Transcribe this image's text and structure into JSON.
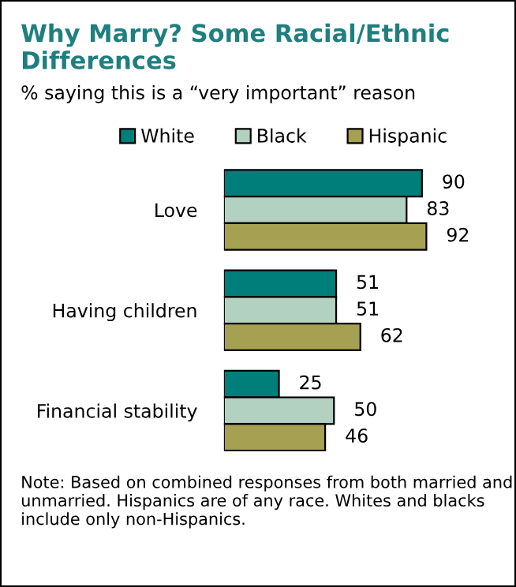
{
  "chart_data": {
    "type": "bar",
    "orientation": "horizontal",
    "title": "Why Marry? Some Racial/Ethnic Differences",
    "subtitle": "% saying this is a “very important” reason",
    "categories": [
      "Love",
      "Having children",
      "Financial stability"
    ],
    "series": [
      {
        "name": "White",
        "color": "#007f7a",
        "values": [
          90,
          51,
          25
        ]
      },
      {
        "name": "Black",
        "color": "#b3d1c0",
        "values": [
          83,
          51,
          50
        ]
      },
      {
        "name": "Hispanic",
        "color": "#a5a052",
        "values": [
          92,
          62,
          46
        ]
      }
    ],
    "data_labels": true,
    "legend": "top",
    "grid": false,
    "annotations": [
      "Note: Based on combined responses from both married and unmarried. Hispanics are of any race. Whites and blacks include only non-Hispanics."
    ]
  }
}
